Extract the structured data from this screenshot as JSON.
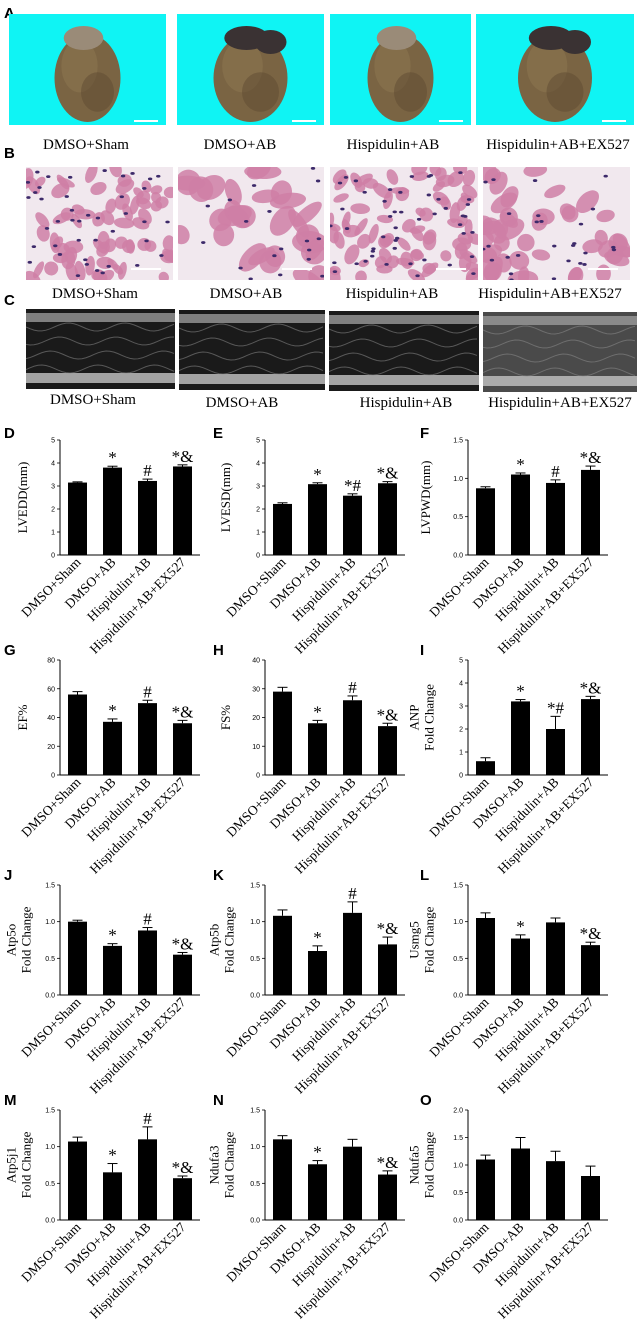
{
  "figure": {
    "panel_letters": [
      "A",
      "B",
      "C"
    ],
    "rows_labels": [
      [
        "DMSO+Sham",
        "DMSO+AB",
        "Hispidulin+AB",
        "Hispidulin+AB+EX527"
      ],
      [
        "DMSO+Sham",
        "DMSO+AB",
        "Hispidulin+AB",
        "Hispidulin+AB+EX527"
      ],
      [
        "DMSO+Sham",
        "DMSO+AB",
        "Hispidulin+AB",
        "Hispidulin+AB+EX527"
      ]
    ],
    "colors": {
      "photo_bg": "#0ff4f4",
      "heart": "#7a6443",
      "heart_dark": "#3a3233",
      "he_bg": "#f1e8ee",
      "he_tissue": "#cf7fa6",
      "he_nuclei": "#3d2a6a",
      "echo_bg": "#1a1a1a",
      "bar": "#000000"
    }
  },
  "chart_data": [
    {
      "panel": "D",
      "type": "bar",
      "categories": [
        "DMSO+Sham",
        "DMSO+AB",
        "Hispidulin+AB",
        "Hispidulin+AB+EX527"
      ],
      "values": [
        3.15,
        3.8,
        3.22,
        3.85
      ],
      "errors": [
        0.03,
        0.06,
        0.08,
        0.07
      ],
      "sig": [
        "",
        "*",
        "#",
        "*&"
      ],
      "ylabel": "LVEDD(mm)",
      "ylim": [
        0,
        5
      ],
      "yticks": [
        "0",
        "1",
        "2",
        "3",
        "4",
        "5"
      ]
    },
    {
      "panel": "E",
      "type": "bar",
      "categories": [
        "DMSO+Sham",
        "DMSO+AB",
        "Hispidulin+AB",
        "Hispidulin+AB+EX527"
      ],
      "values": [
        2.22,
        3.08,
        2.58,
        3.12
      ],
      "errors": [
        0.05,
        0.06,
        0.08,
        0.07
      ],
      "sig": [
        "",
        "*",
        "*#",
        "*&"
      ],
      "ylabel": "LVESD(mm)",
      "ylim": [
        0,
        5
      ],
      "yticks": [
        "0",
        "1",
        "2",
        "3",
        "4",
        "5"
      ]
    },
    {
      "panel": "F",
      "type": "bar",
      "categories": [
        "DMSO+Sham",
        "DMSO+AB",
        "Hispidulin+AB",
        "Hispidulin+AB+EX527"
      ],
      "values": [
        0.87,
        1.05,
        0.94,
        1.11
      ],
      "errors": [
        0.02,
        0.02,
        0.04,
        0.05
      ],
      "sig": [
        "",
        "*",
        "#",
        "*&"
      ],
      "ylabel": "LVPWD(mm)",
      "ylim": [
        0,
        1.5
      ],
      "yticks": [
        "0.0",
        "0.5",
        "1.0",
        "1.5"
      ]
    },
    {
      "panel": "G",
      "type": "bar",
      "categories": [
        "DMSO+Sham",
        "DMSO+AB",
        "Hispidulin+AB",
        "Hispidulin+AB+EX527"
      ],
      "values": [
        56,
        37,
        50,
        36
      ],
      "errors": [
        2,
        2,
        2,
        2
      ],
      "sig": [
        "",
        "*",
        "#",
        "*&"
      ],
      "ylabel": "EF%",
      "ylim": [
        0,
        80
      ],
      "yticks": [
        "0",
        "20",
        "40",
        "60",
        "80"
      ]
    },
    {
      "panel": "H",
      "type": "bar",
      "categories": [
        "DMSO+Sham",
        "DMSO+AB",
        "Hispidulin+AB",
        "Hispidulin+AB+EX527"
      ],
      "values": [
        29,
        18,
        26,
        17
      ],
      "errors": [
        1.5,
        1,
        1.5,
        1
      ],
      "sig": [
        "",
        "*",
        "#",
        "*&"
      ],
      "ylabel": "FS%",
      "ylim": [
        0,
        40
      ],
      "yticks": [
        "0",
        "10",
        "20",
        "30",
        "40"
      ]
    },
    {
      "panel": "I",
      "type": "bar",
      "categories": [
        "DMSO+Sham",
        "DMSO+AB",
        "Hispidulin+AB",
        "Hispidulin+AB+EX527"
      ],
      "values": [
        0.6,
        3.2,
        2.0,
        3.3
      ],
      "errors": [
        0.15,
        0.08,
        0.55,
        0.12
      ],
      "sig": [
        "",
        "*",
        "*#",
        "*&"
      ],
      "ylabel": "ANP\nFold Change",
      "ylim": [
        0,
        5
      ],
      "yticks": [
        "0",
        "1",
        "2",
        "3",
        "4",
        "5"
      ]
    },
    {
      "panel": "J",
      "type": "bar",
      "categories": [
        "DMSO+Sham",
        "DMSO+AB",
        "Hispidulin+AB",
        "Hispidulin+AB+EX527"
      ],
      "values": [
        1.0,
        0.67,
        0.88,
        0.55
      ],
      "errors": [
        0.02,
        0.03,
        0.04,
        0.03
      ],
      "sig": [
        "",
        "*",
        "#",
        "*&"
      ],
      "ylabel": "Atp5o\nFold Change",
      "ylim": [
        0,
        1.5
      ],
      "yticks": [
        "0.0",
        "0.5",
        "1.0",
        "1.5"
      ]
    },
    {
      "panel": "K",
      "type": "bar",
      "categories": [
        "DMSO+Sham",
        "DMSO+AB",
        "Hispidulin+AB",
        "Hispidulin+AB+EX527"
      ],
      "values": [
        1.08,
        0.6,
        1.12,
        0.69
      ],
      "errors": [
        0.08,
        0.07,
        0.15,
        0.1
      ],
      "sig": [
        "",
        "*",
        "#",
        "*&"
      ],
      "ylabel": "Atp5b\nFold Change",
      "ylim": [
        0,
        1.5
      ],
      "yticks": [
        "0.0",
        "0.5",
        "1.0",
        "1.5"
      ]
    },
    {
      "panel": "L",
      "type": "bar",
      "categories": [
        "DMSO+Sham",
        "DMSO+AB",
        "Hispidulin+AB",
        "Hispidulin+AB+EX527"
      ],
      "values": [
        1.05,
        0.77,
        0.99,
        0.68
      ],
      "errors": [
        0.07,
        0.05,
        0.06,
        0.04
      ],
      "sig": [
        "",
        "*",
        "",
        "*&"
      ],
      "ylabel": "Usmg5\nFold Change",
      "ylim": [
        0,
        1.5
      ],
      "yticks": [
        "0.0",
        "0.5",
        "1.0",
        "1.5"
      ]
    },
    {
      "panel": "M",
      "type": "bar",
      "categories": [
        "DMSO+Sham",
        "DMSO+AB",
        "Hispidulin+AB",
        "Hispidulin+AB+EX527"
      ],
      "values": [
        1.07,
        0.65,
        1.1,
        0.57
      ],
      "errors": [
        0.06,
        0.12,
        0.17,
        0.03
      ],
      "sig": [
        "",
        "*",
        "#",
        "*&"
      ],
      "ylabel": "Atp5j1\nFold Change",
      "ylim": [
        0,
        1.5
      ],
      "yticks": [
        "0.0",
        "0.5",
        "1.0",
        "1.5"
      ]
    },
    {
      "panel": "N",
      "type": "bar",
      "categories": [
        "DMSO+Sham",
        "DMSO+AB",
        "Hispidulin+AB",
        "Hispidulin+AB+EX527"
      ],
      "values": [
        1.1,
        0.76,
        1.0,
        0.62
      ],
      "errors": [
        0.05,
        0.05,
        0.1,
        0.05
      ],
      "sig": [
        "",
        "*",
        "",
        "*&"
      ],
      "ylabel": "Ndufa3\nFold Change",
      "ylim": [
        0,
        1.5
      ],
      "yticks": [
        "0.0",
        "0.5",
        "1.0",
        "1.5"
      ]
    },
    {
      "panel": "O",
      "type": "bar",
      "categories": [
        "DMSO+Sham",
        "DMSO+AB",
        "Hispidulin+AB",
        "Hispidulin+AB+EX527"
      ],
      "values": [
        1.1,
        1.3,
        1.07,
        0.8
      ],
      "errors": [
        0.08,
        0.2,
        0.18,
        0.18
      ],
      "sig": [
        "",
        "",
        "",
        ""
      ],
      "ylabel": "Ndufa5\nFold Change",
      "ylim": [
        0,
        2.0
      ],
      "yticks": [
        "0.0",
        "0.5",
        "1.0",
        "1.5",
        "2.0"
      ]
    }
  ]
}
